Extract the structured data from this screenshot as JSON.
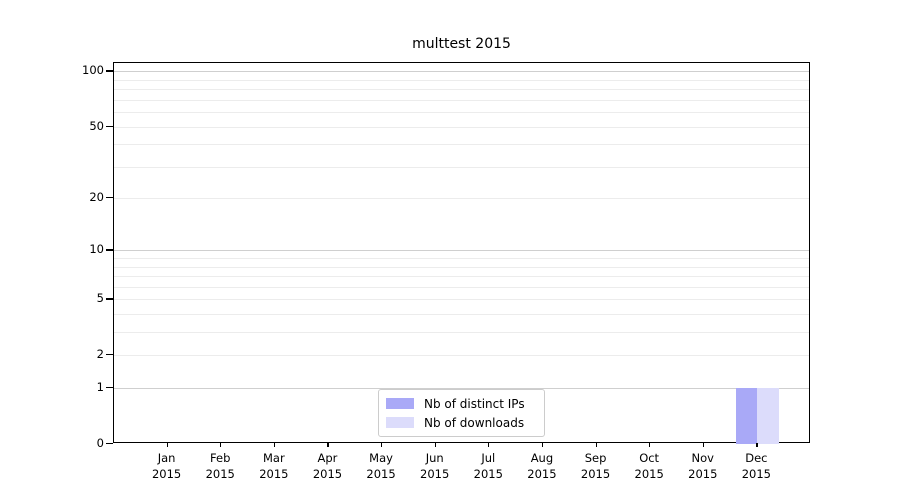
{
  "chart_data": {
    "type": "bar",
    "title": "multtest 2015",
    "categories": [
      "Jan",
      "Feb",
      "Mar",
      "Apr",
      "May",
      "Jun",
      "Jul",
      "Aug",
      "Sep",
      "Oct",
      "Nov",
      "Dec"
    ],
    "category_year": "2015",
    "series": [
      {
        "name": "Nb of distinct IPs",
        "color": "#a9a9f7",
        "values": [
          0,
          0,
          0,
          0,
          0,
          0,
          0,
          0,
          0,
          0,
          0,
          1
        ]
      },
      {
        "name": "Nb of downloads",
        "color": "#dcdcfb",
        "values": [
          0,
          0,
          0,
          0,
          0,
          0,
          0,
          0,
          0,
          0,
          0,
          1
        ]
      }
    ],
    "xlabel": "",
    "ylabel": "",
    "yscale": "log1p",
    "ylim": [
      0,
      111
    ],
    "ytick_labels": [
      0,
      1,
      2,
      5,
      10,
      20,
      50,
      100
    ],
    "major_gridlines": [
      1,
      10,
      100
    ],
    "minor_gridlines": [
      2,
      3,
      4,
      5,
      6,
      7,
      8,
      9,
      20,
      30,
      40,
      50,
      60,
      70,
      80,
      90
    ],
    "grid": "horizontal",
    "legend_position": "lower center",
    "colors": {
      "axis": "#000000",
      "major_grid": "#cfcfcf",
      "minor_grid": "#ececec",
      "background": "#ffffff"
    }
  }
}
